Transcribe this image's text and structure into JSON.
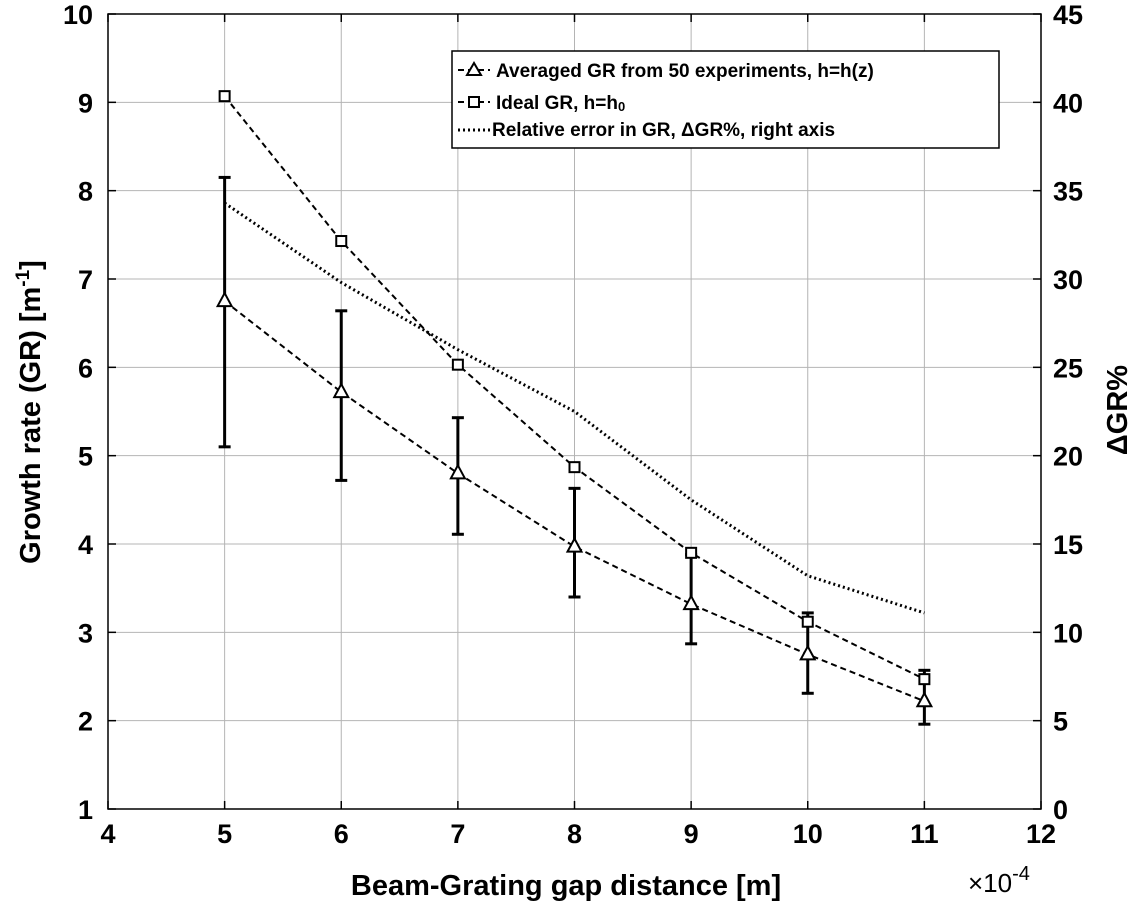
{
  "chart_data": {
    "type": "line",
    "xlabel": "Beam-Grating gap distance [m]",
    "x_multiplier_label": "×10",
    "x_multiplier_exp": "-4",
    "ylabel": "Growth rate (GR) [m",
    "ylabel_sup": "-1",
    "ylabel_end": "]",
    "y2label": "ΔGR%",
    "xlim": [
      4,
      12
    ],
    "ylim": [
      1,
      10
    ],
    "y2lim": [
      0,
      45
    ],
    "xticks": [
      4,
      5,
      6,
      7,
      8,
      9,
      10,
      11,
      12
    ],
    "yticks": [
      1,
      2,
      3,
      4,
      5,
      6,
      7,
      8,
      9,
      10
    ],
    "y2ticks": [
      0,
      5,
      10,
      15,
      20,
      25,
      30,
      35,
      40,
      45
    ],
    "grid": true,
    "legend_position": "top-right",
    "x": [
      5,
      6,
      7,
      8,
      9,
      10,
      11
    ],
    "series": [
      {
        "name": "Averaged GR from 50 experiments, h=h(z)",
        "marker": "triangle",
        "line": "dashed",
        "axis": "left",
        "values": [
          6.75,
          5.72,
          4.8,
          3.97,
          3.32,
          2.75,
          2.22
        ],
        "err_low": [
          5.1,
          4.72,
          4.11,
          3.4,
          2.87,
          2.31,
          1.96
        ],
        "err_high": [
          8.15,
          6.64,
          5.43,
          4.63,
          3.88,
          3.22,
          2.57
        ]
      },
      {
        "name": "Ideal GR, h=h",
        "name_sub": "0",
        "marker": "square",
        "line": "dashed",
        "axis": "left",
        "values": [
          9.07,
          7.43,
          6.03,
          4.87,
          3.9,
          3.12,
          2.47
        ]
      },
      {
        "name": "Relative error in GR, ΔGR%, right axis",
        "marker": "none",
        "line": "dotted",
        "axis": "right",
        "values": [
          34.3,
          29.8,
          26.0,
          22.5,
          17.5,
          13.2,
          11.1
        ]
      }
    ]
  }
}
